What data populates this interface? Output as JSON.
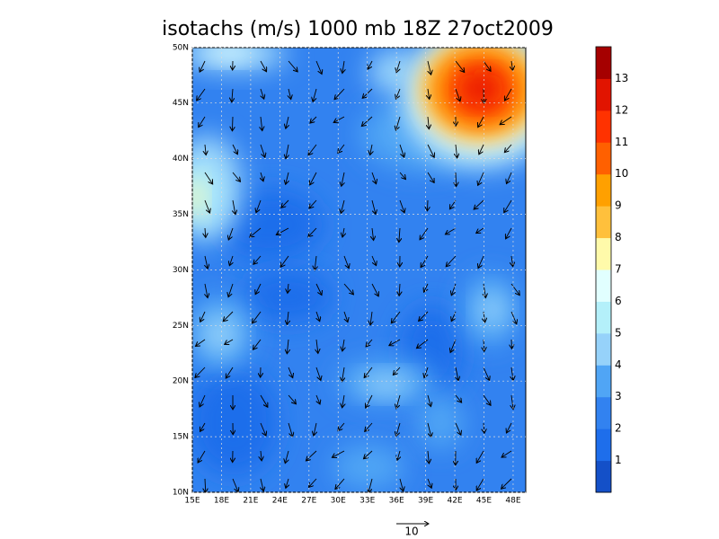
{
  "map": {
    "title": "isotachs (m/s) 1000 mb 18Z 27oct2009",
    "lat_labels": [
      "10N",
      "15N",
      "20N",
      "25N",
      "30N",
      "35N",
      "40N",
      "45N",
      "50N"
    ],
    "lon_labels": [
      "15E",
      "18E",
      "21E",
      "24E",
      "27E",
      "30E",
      "33E",
      "36E",
      "39E",
      "42E",
      "45E",
      "48E"
    ],
    "colorbar": {
      "labels": [
        "1",
        "2",
        "3",
        "4",
        "5",
        "6",
        "7",
        "8",
        "9",
        "10",
        "11",
        "12",
        "13"
      ],
      "colors": [
        "#1450c8",
        "#1e6eeb",
        "#3282f0",
        "#50a5f5",
        "#96d2fa",
        "#b4f0fa",
        "#e1ffff",
        "#fffaaa",
        "#ffc03c",
        "#ffa000",
        "#ff6000",
        "#ff3200",
        "#e11400",
        "#a50000"
      ]
    },
    "reference_vector": {
      "label": "10"
    }
  }
}
